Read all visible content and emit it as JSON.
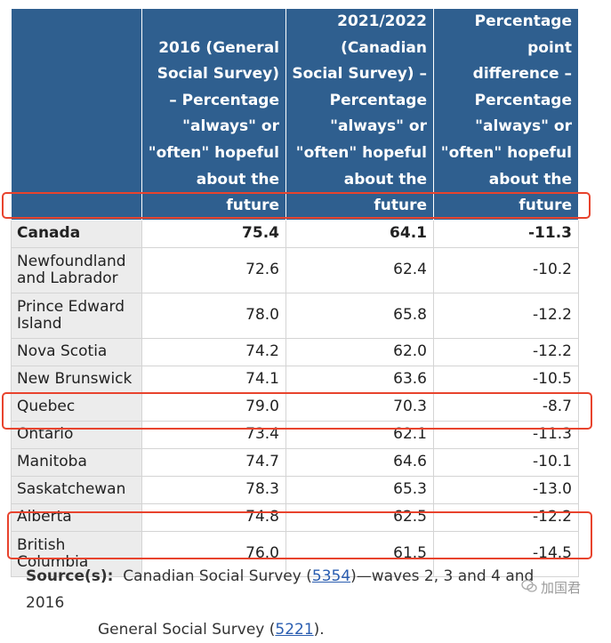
{
  "table": {
    "headers": [
      "",
      "2016 (General Social Survey) – Percentage \"always\" or \"often\" hopeful about the future",
      "2021/2022 (Canadian Social Survey) – Percentage \"always\" or \"often\" hopeful about the future",
      "Percentage point difference – Percentage \"always\" or \"often\" hopeful about the future"
    ],
    "rows": [
      {
        "name": "Canada",
        "y2016": "75.4",
        "y2021": "64.1",
        "diff": "-11.3"
      },
      {
        "name": "Newfoundland and Labrador",
        "y2016": "72.6",
        "y2021": "62.4",
        "diff": "-10.2"
      },
      {
        "name": "Prince Edward Island",
        "y2016": "78.0",
        "y2021": "65.8",
        "diff": "-12.2"
      },
      {
        "name": "Nova Scotia",
        "y2016": "74.2",
        "y2021": "62.0",
        "diff": "-12.2"
      },
      {
        "name": "New Brunswick",
        "y2016": "74.1",
        "y2021": "63.6",
        "diff": "-10.5"
      },
      {
        "name": "Quebec",
        "y2016": "79.0",
        "y2021": "70.3",
        "diff": "-8.7"
      },
      {
        "name": "Ontario",
        "y2016": "73.4",
        "y2021": "62.1",
        "diff": "-11.3"
      },
      {
        "name": "Manitoba",
        "y2016": "74.7",
        "y2021": "64.6",
        "diff": "-10.1"
      },
      {
        "name": "Saskatchewan",
        "y2016": "78.3",
        "y2021": "65.3",
        "diff": "-13.0"
      },
      {
        "name": "Alberta",
        "y2016": "74.8",
        "y2021": "62.5",
        "diff": "-12.2"
      },
      {
        "name": "British Columbia",
        "y2016": "76.0",
        "y2021": "61.5",
        "diff": "-14.5"
      }
    ]
  },
  "source": {
    "label": "Source(s):",
    "text1": "Canadian Social Survey (",
    "link1": "5354",
    "text2": ")—waves 2, 3 and 4 and 2016",
    "text3": "General Social Survey (",
    "link2": "5221",
    "text4": ")."
  },
  "watermark": {
    "icon": "wechat-icon",
    "text": "加国君"
  },
  "colors": {
    "header_bg": "#2f5f8f",
    "highlight": "#e8432d",
    "stub_bg": "#ececec",
    "link": "#2a5db0"
  }
}
